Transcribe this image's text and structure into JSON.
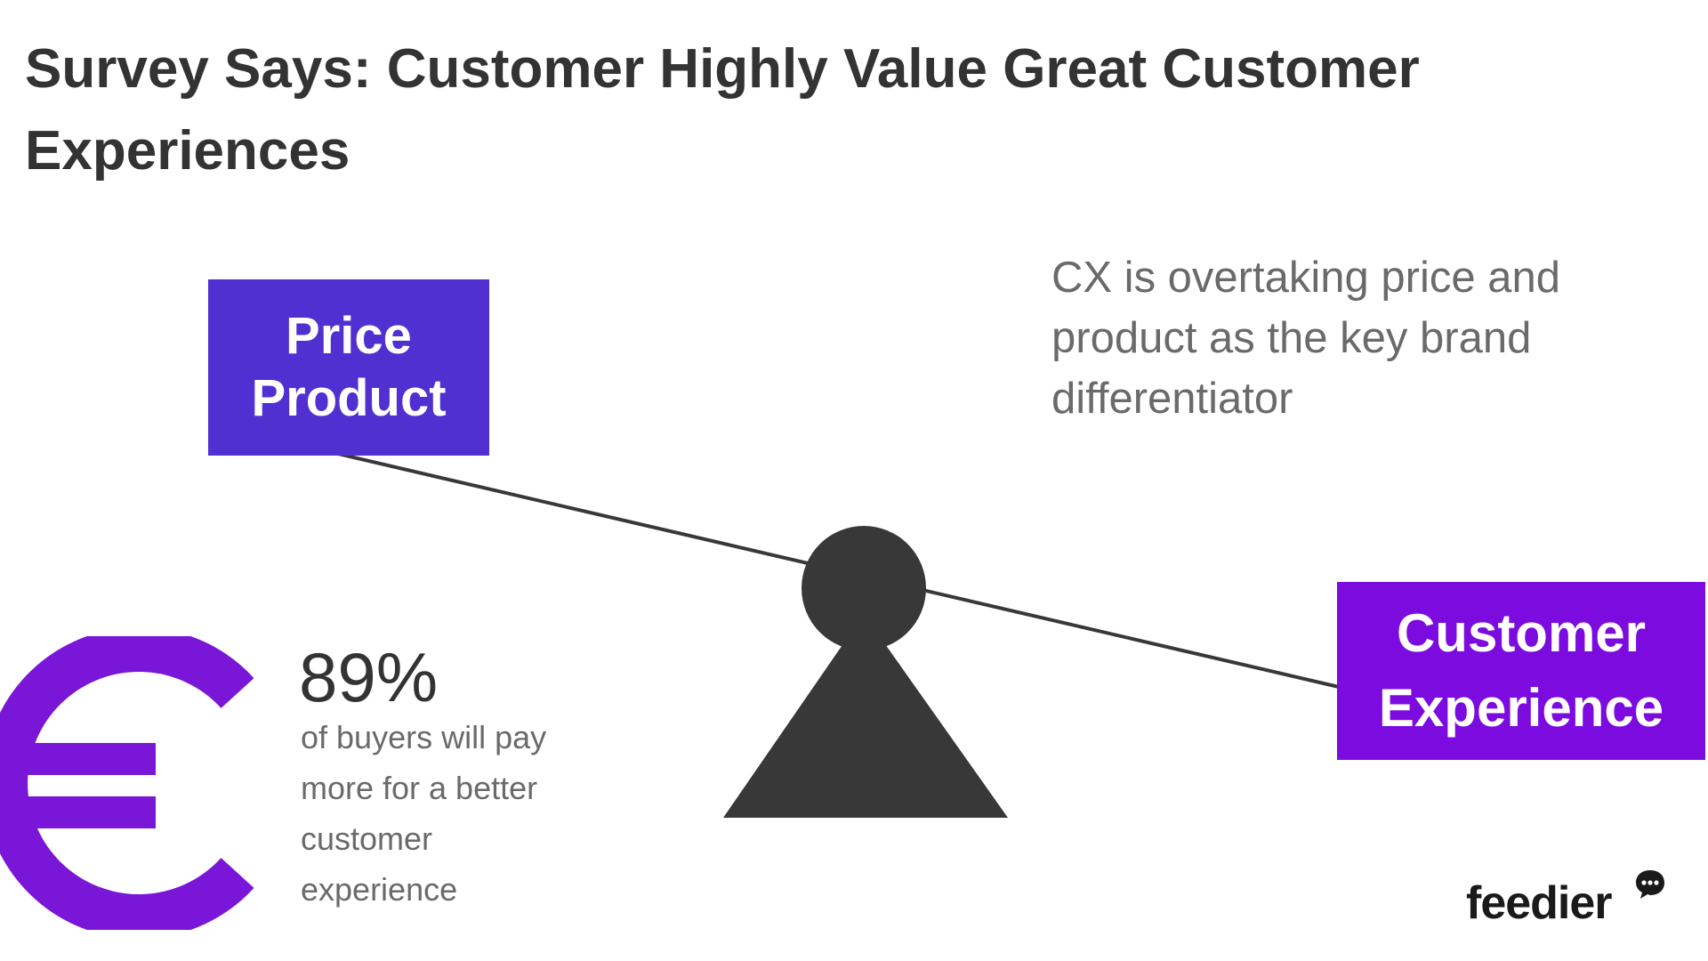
{
  "title": "Survey Says: Customer Highly Value Great Customer Experiences",
  "left_box": {
    "line1": "Price",
    "line2": "Product"
  },
  "right_box": {
    "line1": "Customer",
    "line2": "Experience"
  },
  "cx_statement": "CX is overtaking price and product as the key brand differentiator",
  "stat": {
    "value": "89%",
    "description": "of buyers will pay more for a better customer experience"
  },
  "logo": "feedier",
  "colors": {
    "left_box": "#5030d0",
    "right_box": "#7b0bdf",
    "euro": "#7a16d8",
    "fulcrum": "#383838",
    "text_dark": "#333333",
    "text_gray": "#6a6a6a"
  },
  "icons": {
    "currency": "euro-icon",
    "logo_mark": "chat-bubble-icon"
  }
}
